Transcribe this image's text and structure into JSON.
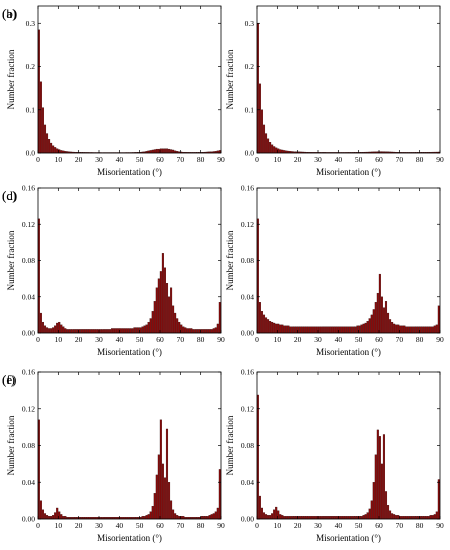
{
  "figure": {
    "bar_color": "#8b0a0a",
    "bar_edge": "#2a0a0a",
    "axis_color": "#000000",
    "highlight_color": "#ff80ff"
  },
  "chart_data": [
    {
      "panel": "(a)",
      "type": "bar",
      "xlabel": "Misorientation (°)",
      "ylabel": "Number fraction",
      "xlim": [
        0,
        90
      ],
      "ylim": [
        0,
        0.34
      ],
      "xticks": [
        "0",
        "10",
        "20",
        "30",
        "40",
        "50",
        "60",
        "70",
        "80",
        "90"
      ],
      "yticks": [
        "0.0",
        "0.1",
        "0.2",
        "0.3"
      ],
      "bin_width": 1,
      "x": [
        1,
        2,
        3,
        4,
        5,
        6,
        7,
        8,
        9,
        10,
        11,
        12,
        13,
        14,
        15,
        16,
        17,
        18,
        19,
        20,
        21,
        22,
        23,
        24,
        25,
        26,
        27,
        28,
        29,
        30,
        31,
        32,
        33,
        34,
        35,
        36,
        37,
        38,
        39,
        40,
        41,
        42,
        43,
        44,
        45,
        46,
        47,
        48,
        49,
        50,
        51,
        52,
        53,
        54,
        55,
        56,
        57,
        58,
        59,
        60,
        61,
        62,
        63,
        64,
        65,
        66,
        67,
        68,
        69,
        70,
        71,
        72,
        73,
        74,
        75,
        76,
        77,
        78,
        79,
        80,
        81,
        82,
        83,
        84,
        85,
        86,
        87,
        88,
        89,
        90
      ],
      "values": [
        0.285,
        0.165,
        0.105,
        0.065,
        0.045,
        0.032,
        0.023,
        0.017,
        0.013,
        0.01,
        0.008,
        0.006,
        0.005,
        0.004,
        0.0035,
        0.003,
        0.0025,
        0.0022,
        0.002,
        0.002,
        0.0018,
        0.0017,
        0.0016,
        0.0015,
        0.0015,
        0.0014,
        0.0014,
        0.0013,
        0.0013,
        0.0013,
        0.0013,
        0.0012,
        0.0012,
        0.0012,
        0.0012,
        0.0012,
        0.0012,
        0.0012,
        0.0012,
        0.0012,
        0.0012,
        0.0012,
        0.0012,
        0.0013,
        0.0013,
        0.0013,
        0.0014,
        0.0015,
        0.0016,
        0.0018,
        0.002,
        0.0025,
        0.003,
        0.004,
        0.005,
        0.006,
        0.007,
        0.008,
        0.009,
        0.009,
        0.01,
        0.01,
        0.01,
        0.01,
        0.009,
        0.008,
        0.007,
        0.005,
        0.004,
        0.003,
        0.0025,
        0.002,
        0.002,
        0.0018,
        0.0017,
        0.0016,
        0.0016,
        0.0016,
        0.0016,
        0.0017,
        0.0018,
        0.002,
        0.0022,
        0.0025,
        0.0028,
        0.003,
        0.0035,
        0.004,
        0.005,
        0.006
      ]
    },
    {
      "panel": "(b)",
      "type": "bar",
      "xlabel": "Misorientation (°)",
      "ylabel": "Number fraction",
      "xlim": [
        0,
        90
      ],
      "ylim": [
        0,
        0.34
      ],
      "xticks": [
        "0",
        "10",
        "20",
        "30",
        "40",
        "50",
        "60",
        "70",
        "80",
        "90"
      ],
      "yticks": [
        "0.0",
        "0.1",
        "0.2",
        "0.3"
      ],
      "bin_width": 1,
      "x": [
        1,
        2,
        3,
        4,
        5,
        6,
        7,
        8,
        9,
        10,
        11,
        12,
        13,
        14,
        15,
        16,
        17,
        18,
        19,
        20,
        21,
        22,
        23,
        24,
        25,
        26,
        27,
        28,
        29,
        30,
        31,
        32,
        33,
        34,
        35,
        36,
        37,
        38,
        39,
        40,
        41,
        42,
        43,
        44,
        45,
        46,
        47,
        48,
        49,
        50,
        51,
        52,
        53,
        54,
        55,
        56,
        57,
        58,
        59,
        60,
        61,
        62,
        63,
        64,
        65,
        66,
        67,
        68,
        69,
        70,
        71,
        72,
        73,
        74,
        75,
        76,
        77,
        78,
        79,
        80,
        81,
        82,
        83,
        84,
        85,
        86,
        87,
        88,
        89,
        90
      ],
      "values": [
        0.3,
        0.16,
        0.1,
        0.065,
        0.045,
        0.033,
        0.025,
        0.019,
        0.015,
        0.012,
        0.01,
        0.008,
        0.007,
        0.006,
        0.005,
        0.0045,
        0.004,
        0.0035,
        0.003,
        0.003,
        0.0028,
        0.0026,
        0.0024,
        0.0022,
        0.002,
        0.002,
        0.0019,
        0.0018,
        0.0018,
        0.0017,
        0.0017,
        0.0016,
        0.0016,
        0.0016,
        0.0015,
        0.0015,
        0.0015,
        0.0015,
        0.0015,
        0.0015,
        0.0015,
        0.0015,
        0.0015,
        0.0015,
        0.0016,
        0.0016,
        0.0016,
        0.0017,
        0.0017,
        0.0018,
        0.0018,
        0.0019,
        0.002,
        0.0021,
        0.0022,
        0.0024,
        0.0026,
        0.0028,
        0.003,
        0.0032,
        0.0033,
        0.0033,
        0.0032,
        0.003,
        0.0028,
        0.0026,
        0.0024,
        0.0022,
        0.002,
        0.0019,
        0.0018,
        0.0017,
        0.0017,
        0.0016,
        0.0016,
        0.0016,
        0.0016,
        0.0016,
        0.0016,
        0.0017,
        0.0017,
        0.0018,
        0.0018,
        0.0019,
        0.002,
        0.002,
        0.0021,
        0.0022,
        0.0023,
        0.0024
      ]
    },
    {
      "panel": "(c)",
      "type": "bar",
      "xlabel": "Misorientation (°)",
      "ylabel": "Number fraction",
      "xlim": [
        0,
        90
      ],
      "ylim": [
        0,
        0.16
      ],
      "xticks": [
        "0",
        "10",
        "20",
        "30",
        "40",
        "50",
        "60",
        "70",
        "80",
        "90"
      ],
      "yticks": [
        "0.00",
        "0.04",
        "0.08",
        "0.12",
        "0.16"
      ],
      "bin_width": 1,
      "x": [
        1,
        2,
        3,
        4,
        5,
        6,
        7,
        8,
        9,
        10,
        11,
        12,
        13,
        14,
        15,
        16,
        17,
        18,
        19,
        20,
        21,
        22,
        23,
        24,
        25,
        26,
        27,
        28,
        29,
        30,
        31,
        32,
        33,
        34,
        35,
        36,
        37,
        38,
        39,
        40,
        41,
        42,
        43,
        44,
        45,
        46,
        47,
        48,
        49,
        50,
        51,
        52,
        53,
        54,
        55,
        56,
        57,
        58,
        59,
        60,
        61,
        62,
        63,
        64,
        65,
        66,
        67,
        68,
        69,
        70,
        71,
        72,
        73,
        74,
        75,
        76,
        77,
        78,
        79,
        80,
        81,
        82,
        83,
        84,
        85,
        86,
        87,
        88,
        89,
        90
      ],
      "values": [
        0.126,
        0.022,
        0.012,
        0.008,
        0.006,
        0.005,
        0.005,
        0.006,
        0.008,
        0.011,
        0.012,
        0.009,
        0.007,
        0.005,
        0.004,
        0.004,
        0.004,
        0.004,
        0.004,
        0.004,
        0.004,
        0.004,
        0.004,
        0.004,
        0.004,
        0.004,
        0.004,
        0.004,
        0.004,
        0.004,
        0.004,
        0.004,
        0.004,
        0.004,
        0.004,
        0.004,
        0.005,
        0.005,
        0.005,
        0.005,
        0.005,
        0.005,
        0.005,
        0.005,
        0.005,
        0.005,
        0.005,
        0.006,
        0.006,
        0.006,
        0.006,
        0.007,
        0.008,
        0.009,
        0.012,
        0.016,
        0.024,
        0.035,
        0.05,
        0.06,
        0.068,
        0.088,
        0.072,
        0.055,
        0.04,
        0.05,
        0.03,
        0.022,
        0.016,
        0.012,
        0.009,
        0.007,
        0.006,
        0.005,
        0.005,
        0.005,
        0.004,
        0.004,
        0.004,
        0.004,
        0.004,
        0.004,
        0.004,
        0.004,
        0.004,
        0.004,
        0.005,
        0.006,
        0.01,
        0.034
      ]
    },
    {
      "panel": "(d)",
      "type": "bar",
      "xlabel": "Misorientation (°)",
      "ylabel": "Number fraction",
      "xlim": [
        0,
        90
      ],
      "ylim": [
        0,
        0.16
      ],
      "xticks": [
        "0",
        "10",
        "20",
        "30",
        "40",
        "50",
        "60",
        "70",
        "80",
        "90"
      ],
      "yticks": [
        "0.00",
        "0.04",
        "0.08",
        "0.12",
        "0.16"
      ],
      "bin_width": 1,
      "x": [
        1,
        2,
        3,
        4,
        5,
        6,
        7,
        8,
        9,
        10,
        11,
        12,
        13,
        14,
        15,
        16,
        17,
        18,
        19,
        20,
        21,
        22,
        23,
        24,
        25,
        26,
        27,
        28,
        29,
        30,
        31,
        32,
        33,
        34,
        35,
        36,
        37,
        38,
        39,
        40,
        41,
        42,
        43,
        44,
        45,
        46,
        47,
        48,
        49,
        50,
        51,
        52,
        53,
        54,
        55,
        56,
        57,
        58,
        59,
        60,
        61,
        62,
        63,
        64,
        65,
        66,
        67,
        68,
        69,
        70,
        71,
        72,
        73,
        74,
        75,
        76,
        77,
        78,
        79,
        80,
        81,
        82,
        83,
        84,
        85,
        86,
        87,
        88,
        89,
        90
      ],
      "values": [
        0.126,
        0.034,
        0.024,
        0.02,
        0.017,
        0.015,
        0.013,
        0.012,
        0.011,
        0.01,
        0.01,
        0.009,
        0.009,
        0.008,
        0.008,
        0.008,
        0.007,
        0.007,
        0.007,
        0.007,
        0.007,
        0.007,
        0.007,
        0.007,
        0.007,
        0.007,
        0.007,
        0.007,
        0.007,
        0.007,
        0.007,
        0.007,
        0.007,
        0.007,
        0.007,
        0.007,
        0.007,
        0.007,
        0.007,
        0.007,
        0.007,
        0.007,
        0.007,
        0.007,
        0.007,
        0.007,
        0.007,
        0.007,
        0.007,
        0.008,
        0.008,
        0.009,
        0.01,
        0.011,
        0.013,
        0.016,
        0.02,
        0.026,
        0.034,
        0.044,
        0.065,
        0.04,
        0.028,
        0.035,
        0.022,
        0.015,
        0.012,
        0.01,
        0.009,
        0.009,
        0.008,
        0.008,
        0.008,
        0.007,
        0.007,
        0.007,
        0.007,
        0.007,
        0.007,
        0.007,
        0.007,
        0.007,
        0.007,
        0.007,
        0.007,
        0.007,
        0.007,
        0.008,
        0.009,
        0.03
      ]
    },
    {
      "panel": "(e)",
      "type": "bar",
      "xlabel": "Misorientation (°)",
      "ylabel": "Number fraction",
      "xlim": [
        0,
        90
      ],
      "ylim": [
        0,
        0.16
      ],
      "xticks": [
        "0",
        "10",
        "20",
        "30",
        "40",
        "50",
        "60",
        "70",
        "80",
        "90"
      ],
      "yticks": [
        "0.00",
        "0.04",
        "0.08",
        "0.12",
        "0.16"
      ],
      "bin_width": 1,
      "x": [
        1,
        2,
        3,
        4,
        5,
        6,
        7,
        8,
        9,
        10,
        11,
        12,
        13,
        14,
        15,
        16,
        17,
        18,
        19,
        20,
        21,
        22,
        23,
        24,
        25,
        26,
        27,
        28,
        29,
        30,
        31,
        32,
        33,
        34,
        35,
        36,
        37,
        38,
        39,
        40,
        41,
        42,
        43,
        44,
        45,
        46,
        47,
        48,
        49,
        50,
        51,
        52,
        53,
        54,
        55,
        56,
        57,
        58,
        59,
        60,
        61,
        62,
        63,
        64,
        65,
        66,
        67,
        68,
        69,
        70,
        71,
        72,
        73,
        74,
        75,
        76,
        77,
        78,
        79,
        80,
        81,
        82,
        83,
        84,
        85,
        86,
        87,
        88,
        89,
        90
      ],
      "values": [
        0.108,
        0.02,
        0.01,
        0.006,
        0.004,
        0.003,
        0.003,
        0.004,
        0.007,
        0.012,
        0.008,
        0.005,
        0.003,
        0.003,
        0.002,
        0.002,
        0.002,
        0.002,
        0.002,
        0.002,
        0.002,
        0.002,
        0.002,
        0.002,
        0.002,
        0.002,
        0.002,
        0.002,
        0.002,
        0.002,
        0.002,
        0.002,
        0.002,
        0.002,
        0.002,
        0.002,
        0.002,
        0.002,
        0.002,
        0.002,
        0.002,
        0.002,
        0.002,
        0.002,
        0.002,
        0.002,
        0.002,
        0.002,
        0.002,
        0.002,
        0.002,
        0.003,
        0.003,
        0.004,
        0.005,
        0.008,
        0.014,
        0.028,
        0.048,
        0.07,
        0.108,
        0.06,
        0.045,
        0.098,
        0.04,
        0.02,
        0.01,
        0.006,
        0.004,
        0.003,
        0.003,
        0.003,
        0.002,
        0.002,
        0.002,
        0.002,
        0.002,
        0.002,
        0.002,
        0.002,
        0.003,
        0.003,
        0.003,
        0.003,
        0.004,
        0.005,
        0.006,
        0.008,
        0.012,
        0.054
      ]
    },
    {
      "panel": "(f)",
      "type": "bar",
      "xlabel": "Misorientation (°)",
      "ylabel": "Number fraction",
      "xlim": [
        0,
        90
      ],
      "ylim": [
        0,
        0.16
      ],
      "xticks": [
        "0",
        "10",
        "20",
        "30",
        "40",
        "50",
        "60",
        "70",
        "80",
        "90"
      ],
      "yticks": [
        "0.00",
        "0.04",
        "0.08",
        "0.12",
        "0.16"
      ],
      "bin_width": 1,
      "x": [
        1,
        2,
        3,
        4,
        5,
        6,
        7,
        8,
        9,
        10,
        11,
        12,
        13,
        14,
        15,
        16,
        17,
        18,
        19,
        20,
        21,
        22,
        23,
        24,
        25,
        26,
        27,
        28,
        29,
        30,
        31,
        32,
        33,
        34,
        35,
        36,
        37,
        38,
        39,
        40,
        41,
        42,
        43,
        44,
        45,
        46,
        47,
        48,
        49,
        50,
        51,
        52,
        53,
        54,
        55,
        56,
        57,
        58,
        59,
        60,
        61,
        62,
        63,
        64,
        65,
        66,
        67,
        68,
        69,
        70,
        71,
        72,
        73,
        74,
        75,
        76,
        77,
        78,
        79,
        80,
        81,
        82,
        83,
        84,
        85,
        86,
        87,
        88,
        89,
        90
      ],
      "values": [
        0.135,
        0.025,
        0.012,
        0.007,
        0.005,
        0.004,
        0.004,
        0.006,
        0.01,
        0.013,
        0.009,
        0.005,
        0.004,
        0.003,
        0.003,
        0.003,
        0.003,
        0.003,
        0.003,
        0.003,
        0.003,
        0.003,
        0.003,
        0.003,
        0.003,
        0.003,
        0.003,
        0.003,
        0.003,
        0.003,
        0.003,
        0.003,
        0.003,
        0.003,
        0.003,
        0.003,
        0.003,
        0.003,
        0.003,
        0.003,
        0.003,
        0.003,
        0.003,
        0.003,
        0.003,
        0.003,
        0.003,
        0.003,
        0.003,
        0.003,
        0.003,
        0.003,
        0.004,
        0.005,
        0.007,
        0.011,
        0.02,
        0.04,
        0.07,
        0.097,
        0.09,
        0.06,
        0.092,
        0.03,
        0.015,
        0.009,
        0.006,
        0.005,
        0.004,
        0.004,
        0.003,
        0.003,
        0.003,
        0.003,
        0.003,
        0.003,
        0.003,
        0.003,
        0.003,
        0.003,
        0.003,
        0.003,
        0.003,
        0.003,
        0.003,
        0.004,
        0.004,
        0.005,
        0.008,
        0.043
      ]
    }
  ]
}
